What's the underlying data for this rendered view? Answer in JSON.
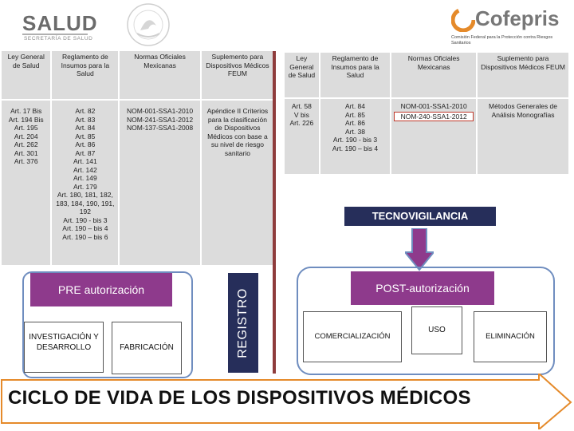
{
  "header": {
    "salud_word": "SALUD",
    "salud_sub": "SECRETARÍA DE SALUD",
    "seal_icon": "mexican-coat-of-arms-seal",
    "cofepris_word": "Cofepris",
    "cofepris_sub": "Comisión Federal para la Protección contra Riesgos Sanitarios"
  },
  "left_table": {
    "headers": [
      "Ley General de Salud",
      "Reglamento de Insumos para la Salud",
      "Normas Oficiales Mexicanas",
      "Suplemento para Dispositivos Médicos FEUM"
    ],
    "col1": [
      "Art. 17 Bis",
      "Art. 194 Bis",
      "Art. 195",
      "Art. 204",
      "Art. 262",
      "Art. 301",
      "Art. 376"
    ],
    "col2": [
      "Art. 82",
      "Art. 83",
      "Art. 84",
      "Art. 85",
      "Art. 86",
      "Art. 87",
      "Art. 141",
      "Art. 142",
      "Art. 149",
      "Art. 179",
      "Art. 180, 181, 182, 183, 184, 190, 191, 192",
      "Art. 190 - bis 3",
      "Art. 190 – bis 4",
      "Art. 190 – bis 6"
    ],
    "col3": [
      "NOM-001-SSA1-2010",
      "NOM-241-SSA1-2012",
      "NOM-137-SSA1-2008"
    ],
    "col4": "Apéndice II Criterios para la clasificación de Dispositivos Médicos con base a su nivel de riesgo sanitario"
  },
  "right_table": {
    "headers": [
      "Ley General de Salud",
      "Reglamento de Insumos para la Salud",
      "Normas Oficiales Mexicanas",
      "Suplemento para Dispositivos Médicos FEUM"
    ],
    "col1": [
      "Art. 58",
      "V bis",
      "Art. 226"
    ],
    "col2": [
      "Art. 84",
      "Art. 85",
      "Art. 86",
      "Art. 38",
      "Art. 190 - bis 3",
      "Art. 190 – bis 4"
    ],
    "col3": [
      "NOM-001-SSA1-2010",
      "NOM-240-SSA1-2012"
    ],
    "col4": "Métodos Generales de Análisis Monografías"
  },
  "tecnovigilancia": "TECNOVIGILANCIA",
  "pre": {
    "label": "PRE autorización",
    "investigacion": "INVESTIGACIÓN Y DESARROLLO",
    "fabricacion": "FABRICACIÓN"
  },
  "registro": "REGISTRO",
  "post": {
    "label": "POST-autorización",
    "comercializacion": "COMERCIALIZACIÓN",
    "uso": "USO",
    "eliminacion": "ELIMINACIÓN"
  },
  "cycle_title": "CICLO DE VIDA DE LOS DISPOSITIVOS MÉDICOS",
  "colors": {
    "navy": "#262e5a",
    "purple": "#8e3a8c",
    "frame": "#6f8dbf",
    "table_bg": "#dcdcdc",
    "highlight": "#c0392b"
  }
}
